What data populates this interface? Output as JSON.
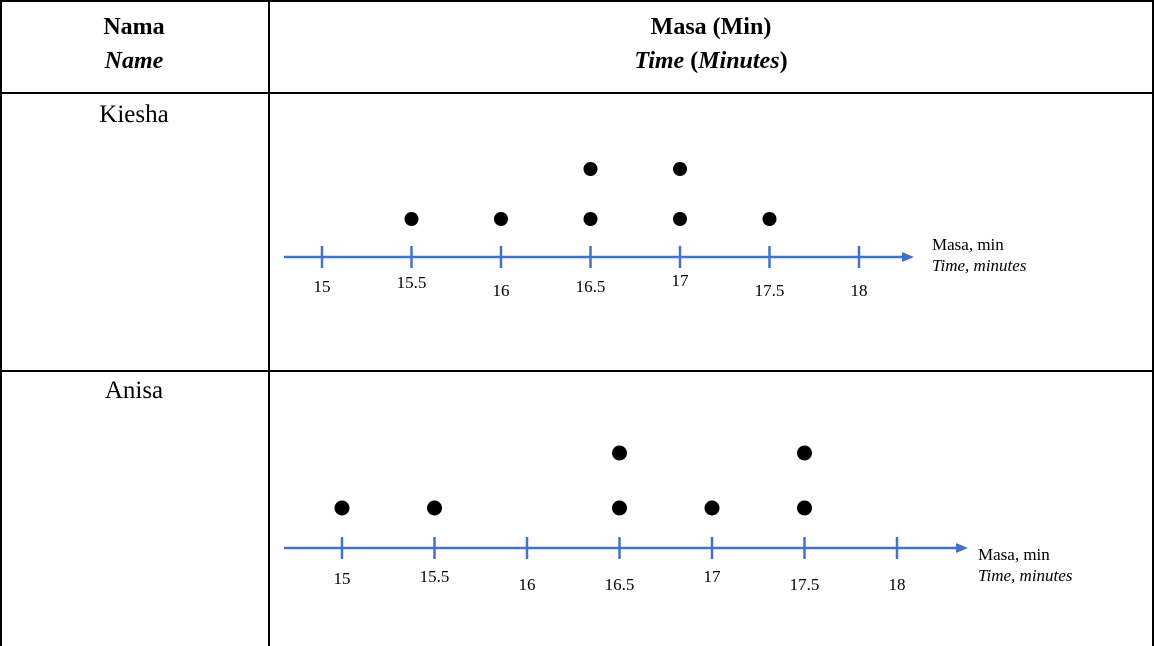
{
  "table": {
    "header": {
      "col1": {
        "malay": "Nama",
        "english": "Name"
      },
      "col2": {
        "malay": "Masa (Min)",
        "english_part1": "Time",
        "english_part2": " (",
        "english_part3": "Minutes",
        "english_part4": ")"
      }
    },
    "rows": [
      {
        "name": "Kiesha"
      },
      {
        "name": "Anisa"
      }
    ]
  },
  "chart_data": [
    {
      "type": "scatter",
      "subtype": "dot plot",
      "row": "Kiesha",
      "x_ticks": [
        15,
        15.5,
        16,
        16.5,
        17,
        17.5,
        18
      ],
      "tick_labels": [
        "15",
        "15.5",
        "16",
        "16.5",
        "17",
        "17.5",
        "18"
      ],
      "xlabel": "Masa, min",
      "xlabel_en": "Time, minutes",
      "points": [
        {
          "x": 15.5,
          "count": 1
        },
        {
          "x": 16,
          "count": 1
        },
        {
          "x": 16.5,
          "count": 2
        },
        {
          "x": 17,
          "count": 2
        },
        {
          "x": 17.5,
          "count": 1
        }
      ],
      "axis_color": "#4472c4",
      "dot_color": "#000000"
    },
    {
      "type": "scatter",
      "subtype": "dot plot",
      "row": "Anisa",
      "x_ticks": [
        15,
        15.5,
        16,
        16.5,
        17,
        17.5,
        18
      ],
      "tick_labels": [
        "15",
        "15.5",
        "16",
        "16.5",
        "17",
        "17.5",
        "18"
      ],
      "xlabel": "Masa, min",
      "xlabel_en": "Time, minutes",
      "points": [
        {
          "x": 15,
          "count": 1
        },
        {
          "x": 15.5,
          "count": 1
        },
        {
          "x": 16.5,
          "count": 2
        },
        {
          "x": 17,
          "count": 1
        },
        {
          "x": 17.5,
          "count": 2
        }
      ],
      "axis_color": "#4472c4",
      "dot_color": "#000000"
    }
  ]
}
